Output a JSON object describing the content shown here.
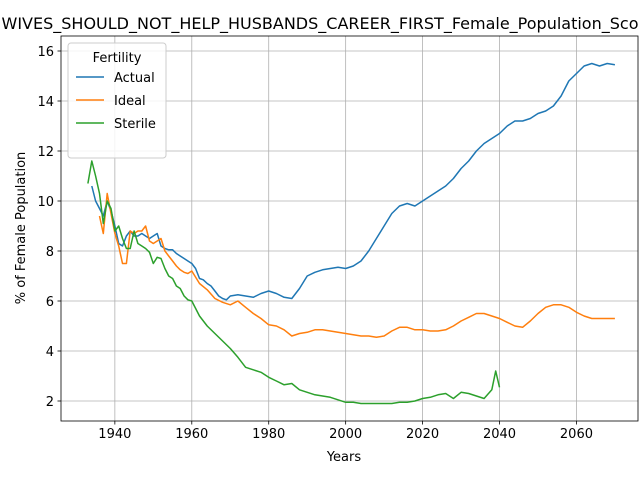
{
  "chart_data": {
    "type": "line",
    "title": "WIVES_SHOULD_NOT_HELP_HUSBANDS_CAREER_FIRST_Female_Population_Sco",
    "xlabel": "Years",
    "ylabel": "% of Female Population",
    "xlim": [
      1926,
      2076
    ],
    "ylim": [
      1.2,
      16.6
    ],
    "xticks": [
      1940,
      1960,
      1980,
      2000,
      2020,
      2040,
      2060
    ],
    "yticks": [
      2,
      4,
      6,
      8,
      10,
      12,
      14,
      16
    ],
    "grid": true,
    "legend": {
      "title": "Fertility",
      "placement": "top-left"
    },
    "series": [
      {
        "name": "Actual",
        "color": "#1f77b4",
        "x": [
          1934,
          1935,
          1936,
          1937,
          1938,
          1939,
          1940,
          1941,
          1942,
          1943,
          1944,
          1945,
          1946,
          1947,
          1948,
          1949,
          1950,
          1951,
          1952,
          1953,
          1954,
          1955,
          1956,
          1957,
          1958,
          1959,
          1960,
          1961,
          1962,
          1963,
          1964,
          1965,
          1966,
          1967,
          1968,
          1969,
          1970,
          1972,
          1974,
          1976,
          1978,
          1980,
          1982,
          1984,
          1986,
          1988,
          1990,
          1992,
          1994,
          1996,
          1998,
          2000,
          2002,
          2004,
          2006,
          2008,
          2010,
          2012,
          2014,
          2016,
          2018,
          2020,
          2022,
          2024,
          2026,
          2028,
          2030,
          2032,
          2034,
          2036,
          2038,
          2040,
          2042,
          2044,
          2046,
          2048,
          2050,
          2052,
          2054,
          2056,
          2058,
          2060,
          2062,
          2064,
          2066,
          2068,
          2070
        ],
        "values": [
          10.6,
          10.0,
          9.7,
          9.4,
          10.0,
          9.6,
          9.0,
          8.3,
          8.2,
          8.6,
          8.8,
          8.6,
          8.6,
          8.7,
          8.6,
          8.5,
          8.6,
          8.7,
          8.2,
          8.1,
          8.05,
          8.05,
          7.9,
          7.8,
          7.7,
          7.6,
          7.5,
          7.3,
          6.9,
          6.85,
          6.7,
          6.6,
          6.4,
          6.2,
          6.1,
          6.05,
          6.2,
          6.25,
          6.2,
          6.15,
          6.3,
          6.4,
          6.3,
          6.15,
          6.1,
          6.5,
          7.0,
          7.15,
          7.25,
          7.3,
          7.35,
          7.3,
          7.4,
          7.6,
          8.0,
          8.5,
          9.0,
          9.5,
          9.8,
          9.9,
          9.8,
          10.0,
          10.2,
          10.4,
          10.6,
          10.9,
          11.3,
          11.6,
          12.0,
          12.3,
          12.5,
          12.7,
          13.0,
          13.2,
          13.2,
          13.3,
          13.5,
          13.6,
          13.8,
          14.2,
          14.8,
          15.1,
          15.4,
          15.5,
          15.4,
          15.5,
          15.45
        ]
      },
      {
        "name": "Ideal",
        "color": "#ff7f0e",
        "x": [
          1936,
          1937,
          1938,
          1939,
          1940,
          1941,
          1942,
          1943,
          1944,
          1945,
          1946,
          1947,
          1948,
          1949,
          1950,
          1951,
          1952,
          1953,
          1954,
          1955,
          1956,
          1957,
          1958,
          1959,
          1960,
          1962,
          1964,
          1966,
          1968,
          1970,
          1972,
          1974,
          1976,
          1978,
          1980,
          1982,
          1984,
          1986,
          1988,
          1990,
          1992,
          1994,
          1996,
          1998,
          2000,
          2002,
          2004,
          2006,
          2008,
          2010,
          2012,
          2014,
          2016,
          2018,
          2020,
          2022,
          2024,
          2026,
          2028,
          2030,
          2032,
          2034,
          2036,
          2038,
          2040,
          2042,
          2044,
          2046,
          2048,
          2050,
          2052,
          2054,
          2056,
          2058,
          2060,
          2062,
          2064,
          2066,
          2068,
          2070
        ],
        "values": [
          9.4,
          8.7,
          10.3,
          9.5,
          8.7,
          8.2,
          7.5,
          7.5,
          8.8,
          8.7,
          8.8,
          8.8,
          9.0,
          8.4,
          8.3,
          8.4,
          8.5,
          8.0,
          7.8,
          7.6,
          7.4,
          7.25,
          7.15,
          7.1,
          7.2,
          6.7,
          6.45,
          6.1,
          5.95,
          5.85,
          6.0,
          5.75,
          5.5,
          5.3,
          5.05,
          5.0,
          4.85,
          4.6,
          4.7,
          4.75,
          4.85,
          4.85,
          4.8,
          4.75,
          4.7,
          4.65,
          4.6,
          4.6,
          4.55,
          4.6,
          4.8,
          4.95,
          4.95,
          4.85,
          4.85,
          4.8,
          4.8,
          4.85,
          5.0,
          5.2,
          5.35,
          5.5,
          5.5,
          5.4,
          5.3,
          5.15,
          5.0,
          4.95,
          5.2,
          5.5,
          5.75,
          5.85,
          5.85,
          5.75,
          5.55,
          5.4,
          5.3,
          5.3,
          5.3,
          5.3
        ]
      },
      {
        "name": "Sterile",
        "color": "#2ca02c",
        "x": [
          1933,
          1934,
          1935,
          1936,
          1937,
          1938,
          1939,
          1940,
          1941,
          1942,
          1943,
          1944,
          1945,
          1946,
          1947,
          1948,
          1949,
          1950,
          1951,
          1952,
          1953,
          1954,
          1955,
          1956,
          1957,
          1958,
          1959,
          1960,
          1962,
          1964,
          1966,
          1968,
          1970,
          1972,
          1974,
          1976,
          1978,
          1980,
          1982,
          1984,
          1986,
          1988,
          1990,
          1992,
          1994,
          1996,
          1998,
          2000,
          2002,
          2004,
          2006,
          2008,
          2010,
          2012,
          2014,
          2016,
          2018,
          2020,
          2022,
          2024,
          2026,
          2028,
          2030,
          2032,
          2034,
          2036,
          2038,
          2039,
          2040
        ],
        "values": [
          10.7,
          11.6,
          11.0,
          10.3,
          9.1,
          10.0,
          9.7,
          8.8,
          9.0,
          8.5,
          8.1,
          8.1,
          8.8,
          8.3,
          8.2,
          8.1,
          7.95,
          7.5,
          7.75,
          7.7,
          7.3,
          7.0,
          6.9,
          6.6,
          6.5,
          6.2,
          6.05,
          6.0,
          5.4,
          5.0,
          4.7,
          4.4,
          4.1,
          3.75,
          3.35,
          3.25,
          3.15,
          2.95,
          2.8,
          2.65,
          2.7,
          2.45,
          2.35,
          2.25,
          2.2,
          2.15,
          2.05,
          1.95,
          1.95,
          1.9,
          1.9,
          1.9,
          1.9,
          1.9,
          1.95,
          1.95,
          2.0,
          2.1,
          2.15,
          2.25,
          2.3,
          2.1,
          2.35,
          2.3,
          2.2,
          2.1,
          2.45,
          3.2,
          2.55
        ]
      }
    ]
  }
}
